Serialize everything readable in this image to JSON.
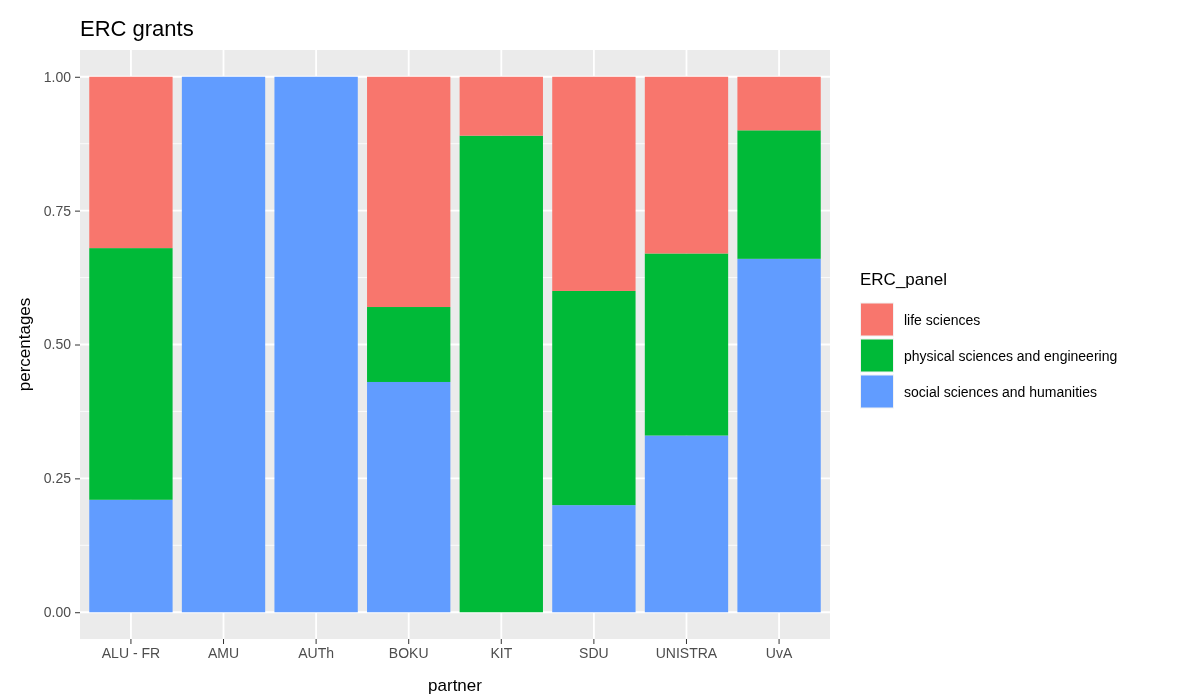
{
  "chart_data": {
    "type": "bar",
    "title": "ERC grants",
    "xlabel": "partner",
    "ylabel": "percentages",
    "legend_title": "ERC_panel",
    "categories": [
      "ALU - FR",
      "AMU",
      "AUTh",
      "BOKU",
      "KIT",
      "SDU",
      "UNISTRA",
      "UvA"
    ],
    "series": [
      {
        "name": "social sciences and humanities",
        "color": "#619cff",
        "values": [
          0.21,
          1,
          1,
          0.43,
          0,
          0.2,
          0.33,
          0.66
        ]
      },
      {
        "name": "physical sciences and engineering",
        "color": "#00ba38",
        "values": [
          0.47,
          0,
          0,
          0.14,
          0.89,
          0.4,
          0.34,
          0.24
        ]
      },
      {
        "name": "life sciences",
        "color": "#f8766d",
        "values": [
          0.32,
          0,
          0,
          0.43,
          0.11,
          0.4,
          0.33,
          0.1
        ]
      }
    ],
    "stacked": true,
    "ylim": [
      -0.05,
      1.05
    ],
    "yticks": [
      {
        "value": 0,
        "label": "0.00"
      },
      {
        "value": 0.25,
        "label": "0.25"
      },
      {
        "value": 0.5,
        "label": "0.50"
      },
      {
        "value": 0.75,
        "label": "0.75"
      },
      {
        "value": 1,
        "label": "1.00"
      }
    ],
    "grid": true,
    "legend": "right"
  }
}
